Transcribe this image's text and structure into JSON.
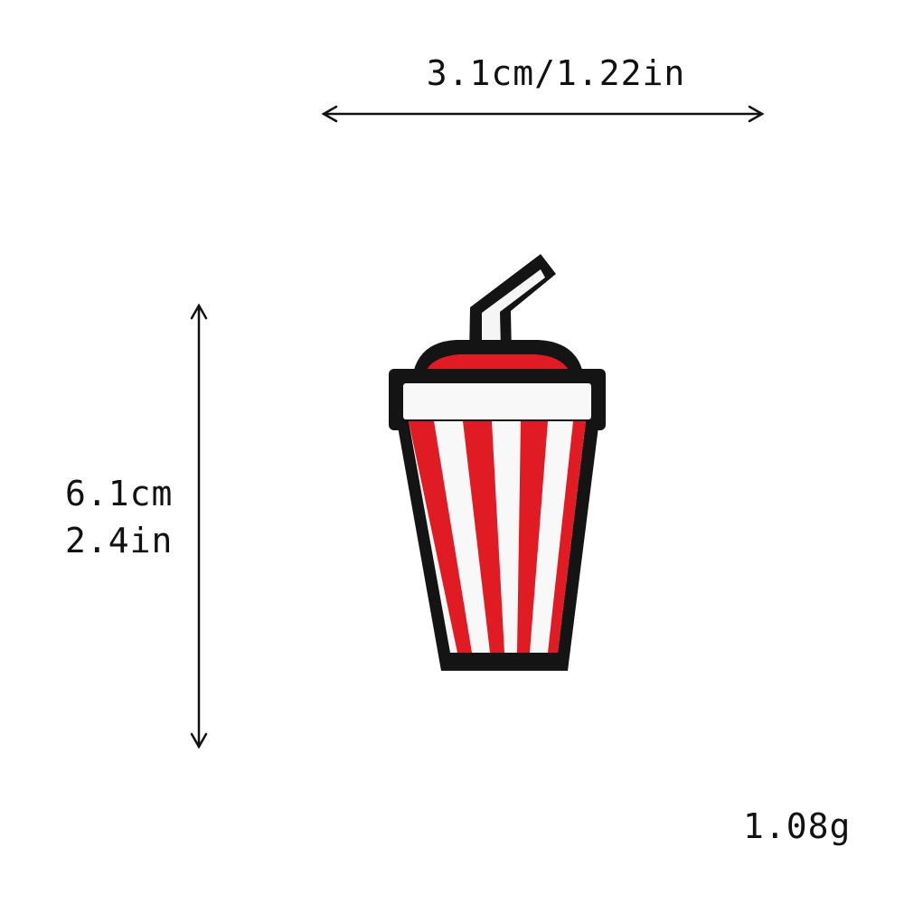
{
  "dimensions": {
    "width_label": "3.1cm/1.22in",
    "height_label_cm": "6.1cm",
    "height_label_in": "2.4in",
    "weight_label": "1.08g"
  },
  "patch": {
    "subject": "striped soda cup with straw embroidered patch",
    "colors": {
      "red": "#e01b24",
      "white": "#f8f8f8",
      "outline": "#141414"
    }
  },
  "icons": {
    "horizontal_arrow": "double-headed-arrow-horizontal",
    "vertical_arrow": "double-headed-arrow-vertical"
  }
}
